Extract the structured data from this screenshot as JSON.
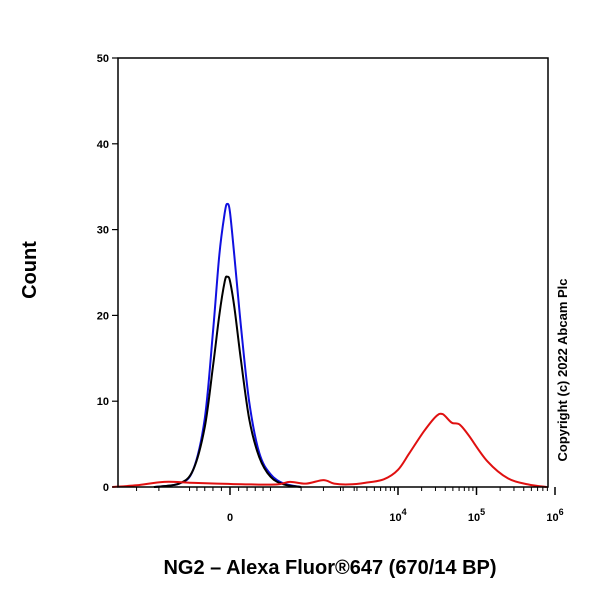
{
  "chart_data": {
    "type": "line",
    "title": "",
    "xlabel": "NG2 – Alexa Fluor®647 (670/14 BP)",
    "ylabel": "Count",
    "x_scale": "biexponential (linear around 0, log above 10^3)",
    "ylim": [
      0,
      50
    ],
    "y_ticks": [
      0,
      10,
      20,
      30,
      40,
      50
    ],
    "x_tick_labels": [
      "0",
      "10^4",
      "10^5",
      "10^6"
    ],
    "grid": false,
    "legend": "none",
    "series": [
      {
        "color": "#1010e0",
        "points": [
          [
            -2200,
            0
          ],
          [
            -1300,
            0.4
          ],
          [
            -900,
            2
          ],
          [
            -600,
            8
          ],
          [
            -400,
            18
          ],
          [
            -250,
            27
          ],
          [
            -120,
            32
          ],
          [
            -60,
            33
          ],
          [
            0,
            32
          ],
          [
            100,
            27
          ],
          [
            250,
            19
          ],
          [
            450,
            10
          ],
          [
            700,
            4
          ],
          [
            1000,
            1.5
          ],
          [
            1400,
            0.4
          ],
          [
            2000,
            0
          ]
        ]
      },
      {
        "color": "#000000",
        "points": [
          [
            -2200,
            0
          ],
          [
            -1300,
            0.4
          ],
          [
            -900,
            2
          ],
          [
            -600,
            7
          ],
          [
            -400,
            14
          ],
          [
            -250,
            20
          ],
          [
            -120,
            24
          ],
          [
            -60,
            24.5
          ],
          [
            0,
            24
          ],
          [
            100,
            21
          ],
          [
            250,
            15
          ],
          [
            450,
            8
          ],
          [
            700,
            3.5
          ],
          [
            1000,
            1.2
          ],
          [
            1400,
            0.3
          ],
          [
            2000,
            0
          ]
        ]
      },
      {
        "color": "#e01010",
        "points": [
          [
            -4500,
            0
          ],
          [
            -3000,
            0.2
          ],
          [
            -1800,
            0.6
          ],
          [
            -1000,
            0.5
          ],
          [
            -300,
            0.4
          ],
          [
            500,
            0.3
          ],
          [
            1200,
            0.3
          ],
          [
            1600,
            0.6
          ],
          [
            2200,
            0.4
          ],
          [
            3000,
            0.8
          ],
          [
            3600,
            0.4
          ],
          [
            4600,
            0.3
          ],
          [
            6000,
            0.5
          ],
          [
            8000,
            0.9
          ],
          [
            10000,
            2
          ],
          [
            12000,
            4
          ],
          [
            15000,
            6.5
          ],
          [
            18000,
            8.2
          ],
          [
            20000,
            8.5
          ],
          [
            23000,
            7.5
          ],
          [
            26000,
            7.3
          ],
          [
            30000,
            6
          ],
          [
            40000,
            3
          ],
          [
            55000,
            1
          ],
          [
            75000,
            0.3
          ],
          [
            100000,
            0
          ]
        ]
      }
    ]
  },
  "copyright": "Copyright (c) 2022 Abcam Plc",
  "colors": {
    "axis": "#000000",
    "background": "#ffffff"
  }
}
